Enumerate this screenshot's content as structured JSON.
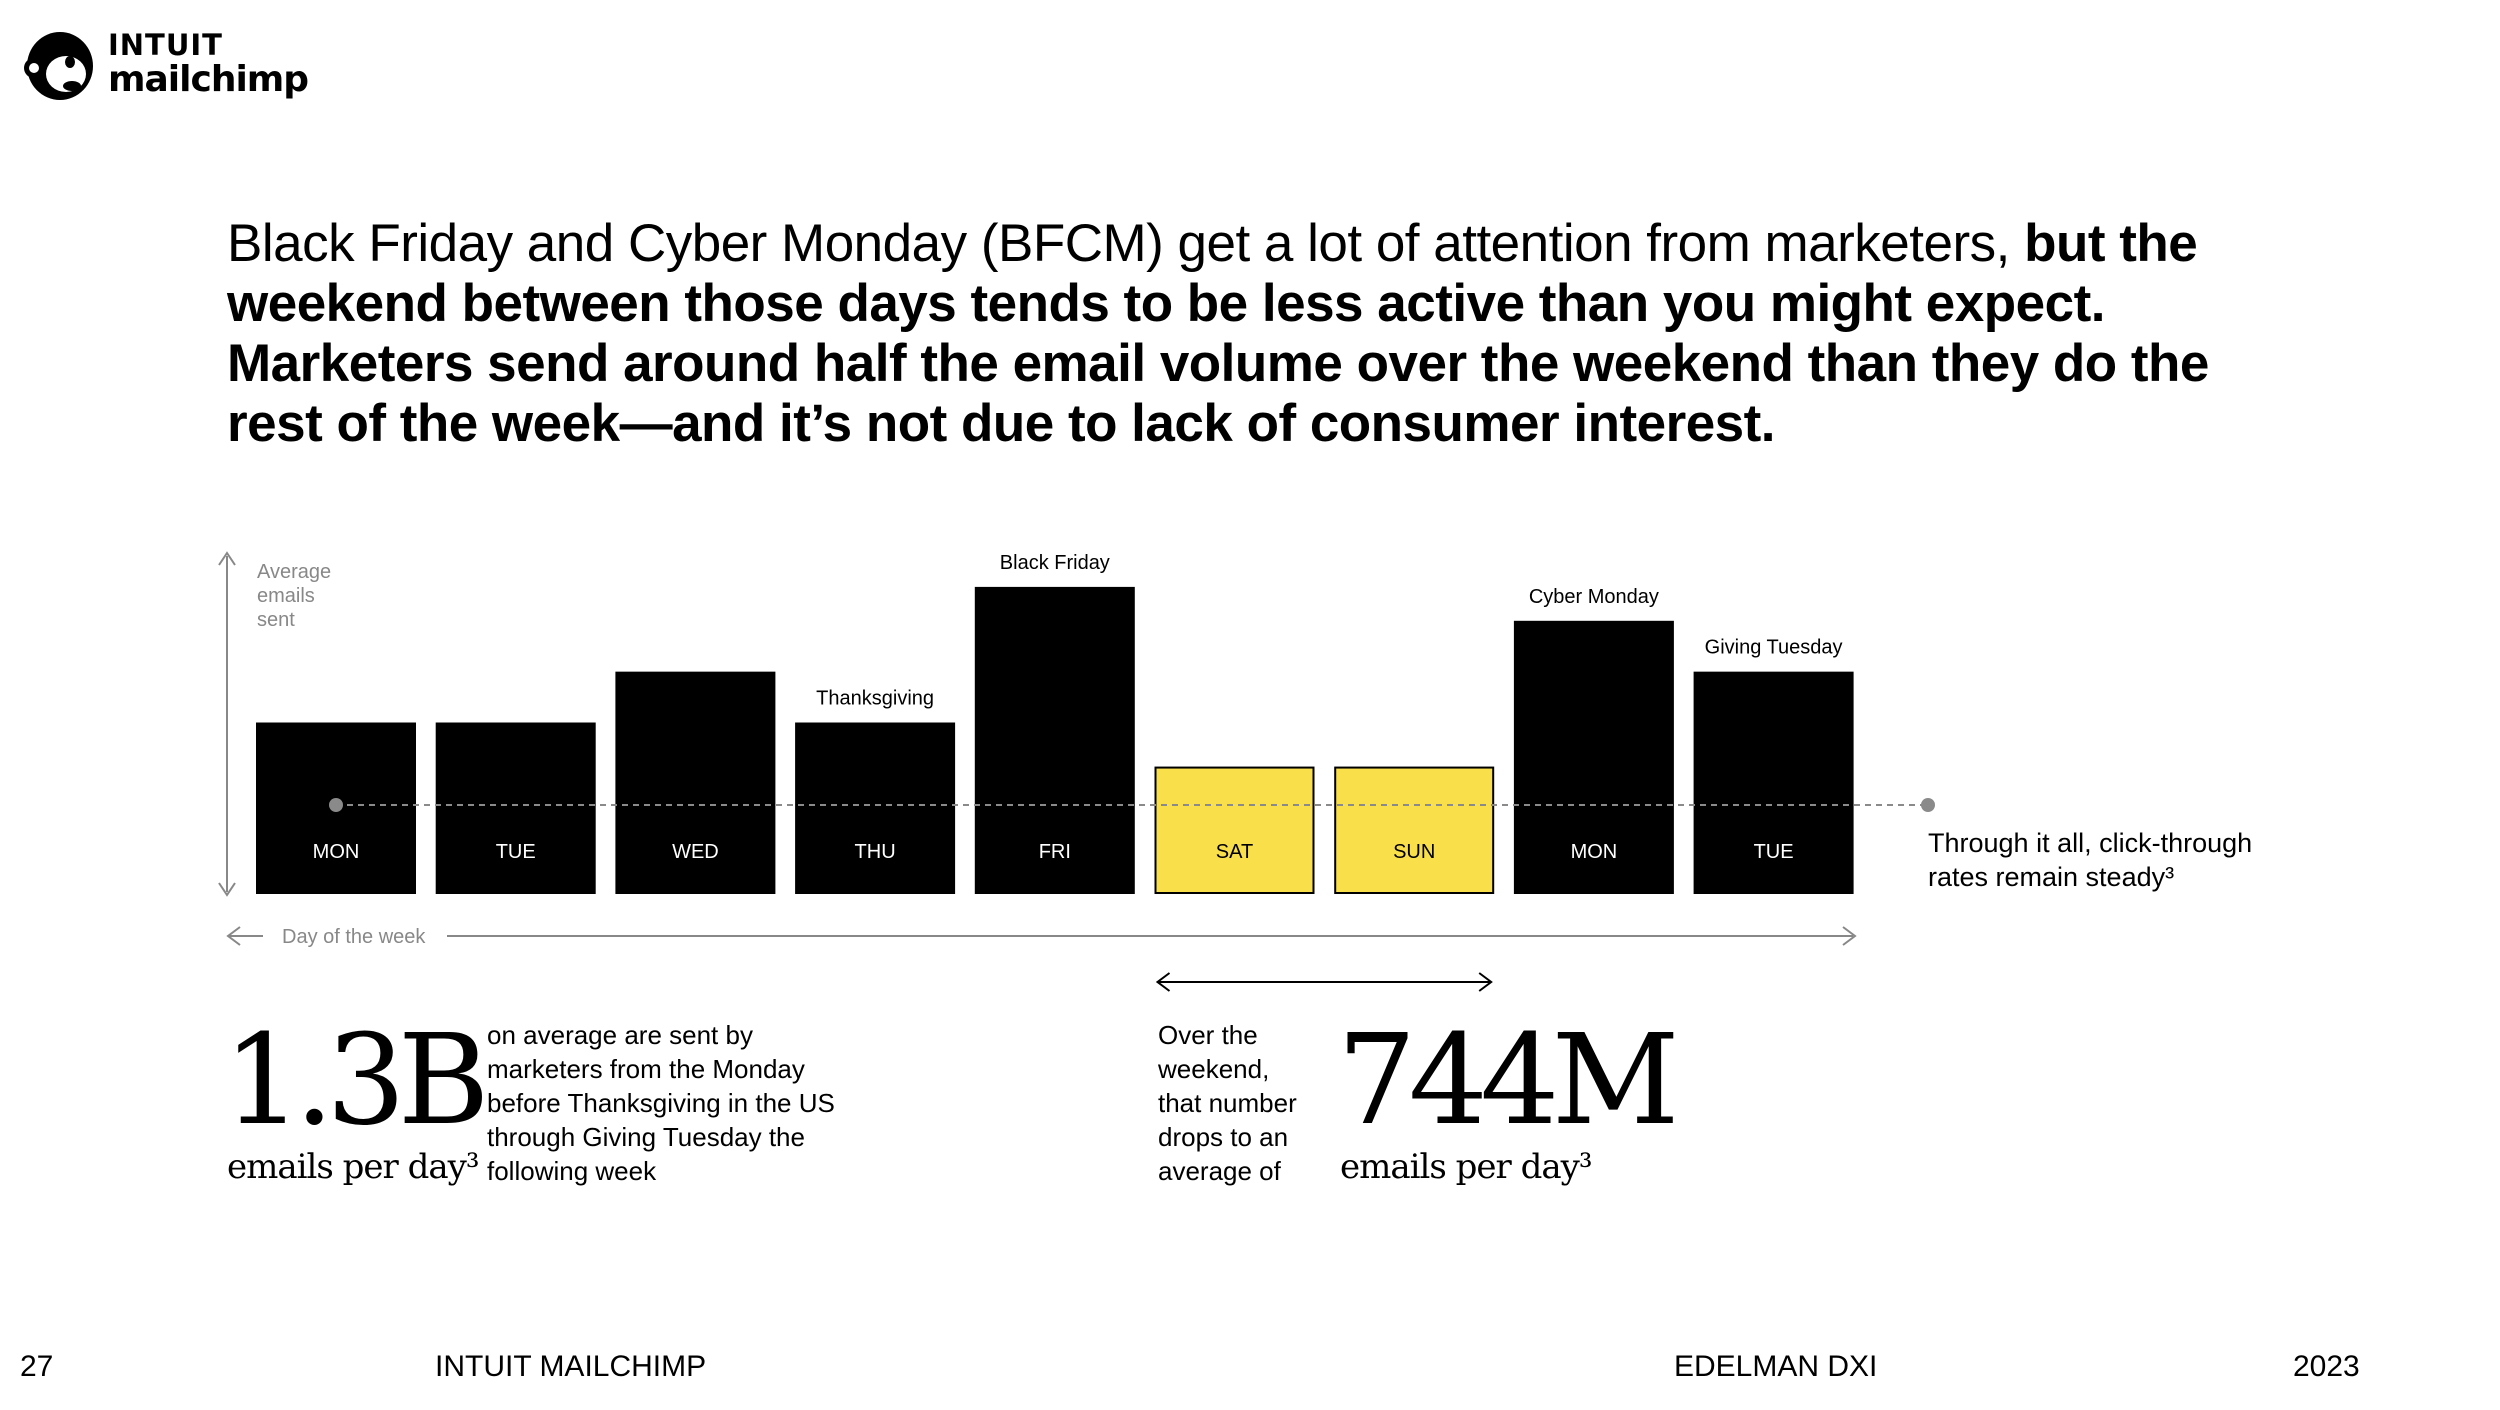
{
  "logo": {
    "brand_top": "INTUIT",
    "brand_bottom": "mailchimp",
    "icon": "freddie-monkey-icon"
  },
  "headline": {
    "regular": "Black Friday and Cyber Monday (BFCM) get a lot of attention from marketers,",
    "bold": "but the weekend between those days tends to be less active than you might expect. Marketers send around half the email volume over the weekend than they do the rest of the week—and it’s not due to lack of consumer interest."
  },
  "chart_data": {
    "type": "bar",
    "ylabel": "Average emails sent",
    "xlabel": "Day of the week",
    "categories": [
      "MON",
      "TUE",
      "WED",
      "THU",
      "FRI",
      "SAT",
      "SUN",
      "MON",
      "TUE"
    ],
    "values": [
      100,
      100,
      130,
      100,
      180,
      74,
      74,
      160,
      130
    ],
    "ylim": [
      0,
      200
    ],
    "annotations": [
      "",
      "",
      "",
      "Thanksgiving",
      "Black Friday",
      "",
      "",
      "Cyber Monday",
      "Giving Tuesday"
    ],
    "highlight": [
      false,
      false,
      false,
      false,
      false,
      true,
      true,
      false,
      false
    ],
    "bar_color": "#000000",
    "highlight_color": "#f9df4a",
    "trend_line_label": "Through it all, click-through rates remain steady³"
  },
  "stats": {
    "left": {
      "number": "1.3B",
      "unit": "emails per day³",
      "description": "on average are sent by marketers from the Monday before Thanksgiving in the US through Giving Tuesday the following week"
    },
    "right": {
      "number": "744M",
      "unit": "emails per day³",
      "description": "Over the weekend, that number drops to an average of"
    }
  },
  "footer": {
    "page": "27",
    "left": "INTUIT MAILCHIMP",
    "right": "EDELMAN DXI",
    "year": "2023"
  }
}
